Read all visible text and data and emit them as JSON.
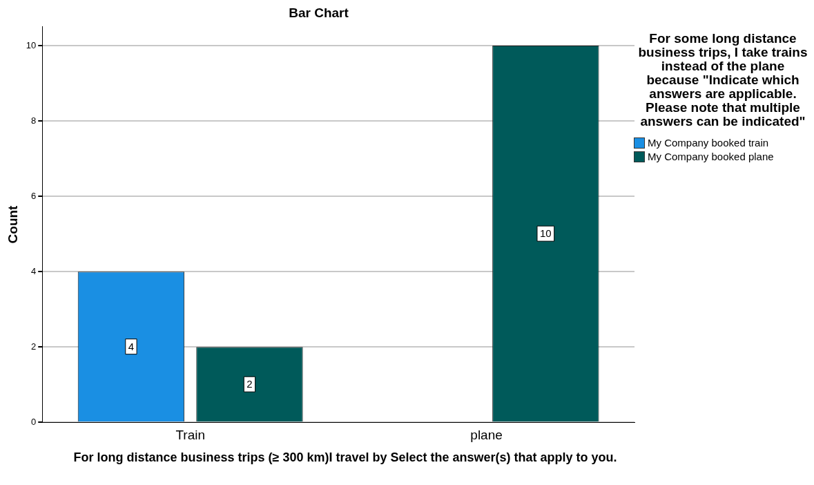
{
  "chart_data": {
    "type": "bar",
    "title": "Bar Chart",
    "xlabel": "For long distance business trips (≥ 300 km)I travel by Select the answer(s) that apply to you.",
    "ylabel": "Count",
    "legend_title": "For some long distance business trips, I take trains instead of the plane because  \"Indicate which answers are applicable. Please note that multiple answers can be indicated\"",
    "categories": [
      "Train",
      "plane"
    ],
    "series": [
      {
        "name": "My Company booked train",
        "color": "#1a8fe3",
        "values": [
          4,
          null
        ]
      },
      {
        "name": "My Company booked plane",
        "color": "#005a5a",
        "values": [
          2,
          10
        ]
      }
    ],
    "ylim": [
      0,
      10.5
    ],
    "yticks": [
      0,
      2,
      4,
      6,
      8,
      10
    ],
    "grid": "y",
    "legend": "right",
    "data_labels": true
  }
}
